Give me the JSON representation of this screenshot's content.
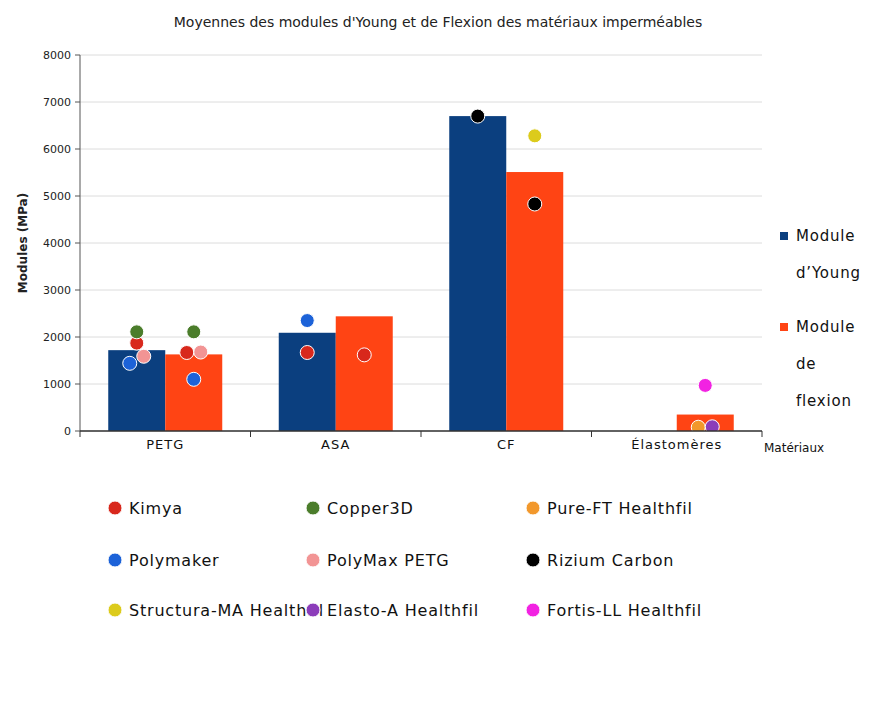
{
  "chart_data": {
    "type": "bar",
    "title": "Moyennes des modules d'Young  et de Flexion des matériaux imperméables",
    "y_label": "Modules (MPa)",
    "x_label": "Matériaux",
    "categories": [
      "PETG",
      "ASA",
      "CF",
      "Élastomères"
    ],
    "series": [
      {
        "name": "Module d’Young",
        "color": "#0b3f7f",
        "values": [
          1720,
          2090,
          6700,
          null
        ]
      },
      {
        "name": "Module de flexion",
        "color": "#ff4414",
        "values": [
          1630,
          2440,
          5510,
          350
        ]
      }
    ],
    "points": [
      {
        "name": "Kimya",
        "color": "#d8281c",
        "young": [
          1870,
          1670,
          null,
          null
        ],
        "flexion": [
          1670,
          1620,
          null,
          null
        ]
      },
      {
        "name": "Copper3D",
        "color": "#4b7d2b",
        "young": [
          2110,
          null,
          null,
          null
        ],
        "flexion": [
          2110,
          null,
          null,
          null
        ]
      },
      {
        "name": "Pure-FT Healthfil",
        "color": "#f2982c",
        "young": [
          null,
          null,
          null,
          null
        ],
        "flexion": [
          null,
          null,
          null,
          80
        ]
      },
      {
        "name": "Polymaker",
        "color": "#1c62d8",
        "young": [
          1440,
          2350,
          null,
          null
        ],
        "flexion": [
          1100,
          null,
          null,
          null
        ]
      },
      {
        "name": "PolyMax PETG",
        "color": "#f29494",
        "young": [
          1590,
          null,
          null,
          null
        ],
        "flexion": [
          1680,
          null,
          null,
          null
        ]
      },
      {
        "name": "Rizium Carbon",
        "color": "#000000",
        "young": [
          null,
          null,
          6700,
          null
        ],
        "flexion": [
          null,
          null,
          4830,
          null
        ]
      },
      {
        "name": "Structura-MA Healthfil",
        "color": "#dccb1c",
        "young": [
          null,
          null,
          null,
          null
        ],
        "flexion": [
          null,
          null,
          6280,
          null
        ]
      },
      {
        "name": "Elasto-A Healthfil",
        "color": "#8c3cba",
        "young": [
          null,
          null,
          null,
          null
        ],
        "flexion": [
          null,
          null,
          null,
          90
        ]
      },
      {
        "name": "Fortis-LL Healthfil",
        "color": "#f222e2",
        "young": [
          null,
          null,
          null,
          null
        ],
        "flexion": [
          null,
          null,
          null,
          970
        ]
      }
    ],
    "ylim": [
      0,
      8000
    ],
    "yticks": [
      0,
      1000,
      2000,
      3000,
      4000,
      5000,
      6000,
      7000,
      8000
    ],
    "grid": true,
    "legend": "right"
  }
}
